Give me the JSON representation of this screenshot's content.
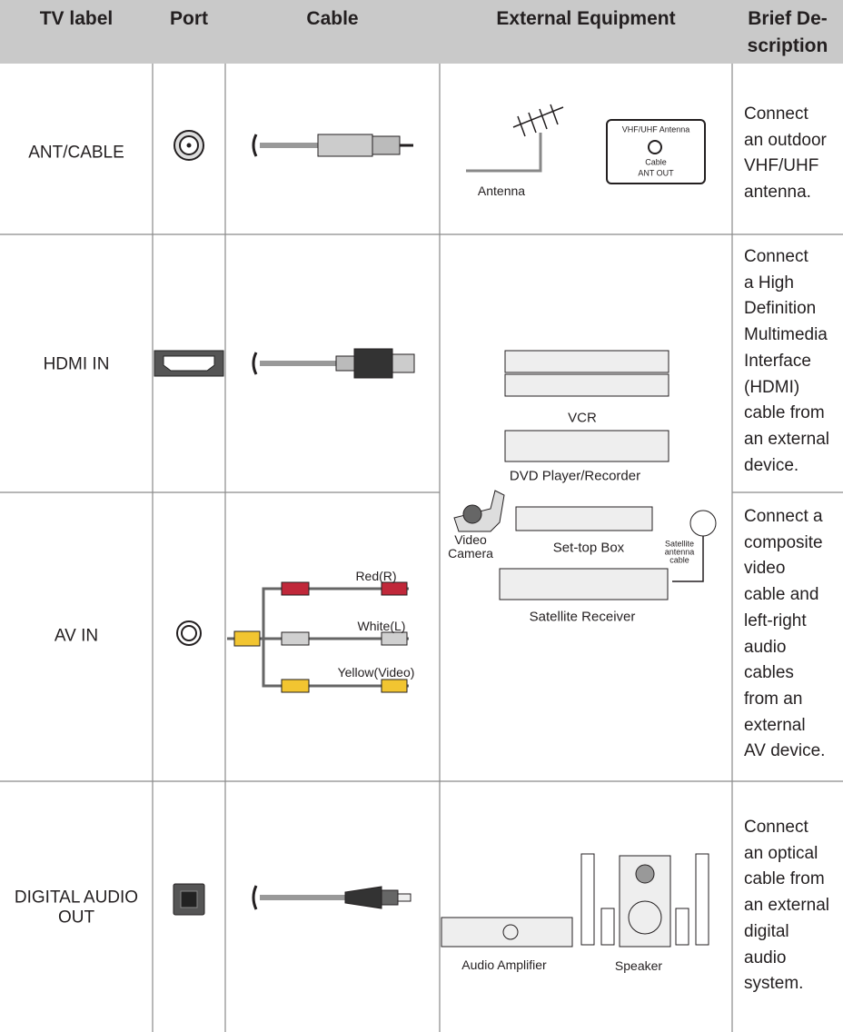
{
  "header": {
    "columns": [
      "TV label",
      "Port",
      "Cable",
      "External Equipment",
      [
        "Brief De-",
        "scription"
      ]
    ]
  },
  "rows": [
    {
      "tv_label": [
        "ANT/CABLE"
      ],
      "description": [
        "Connect",
        "an outdoor",
        "VHF/UHF",
        "antenna."
      ]
    },
    {
      "tv_label": [
        "HDMI IN"
      ],
      "description": [
        "Connect",
        "a High",
        "Definition",
        "Multimedia",
        "Interface",
        "(HDMI)",
        "cable from",
        "an external",
        "device."
      ]
    },
    {
      "tv_label": [
        "AV IN"
      ],
      "description": [
        "Connect a",
        "composite",
        "video",
        "cable and",
        "left-right",
        "audio",
        "cables",
        "from an",
        "external",
        "AV device."
      ]
    },
    {
      "tv_label": [
        "DIGITAL AUDIO",
        "OUT"
      ],
      "description": [
        "Connect",
        "an optical",
        "cable from",
        "an external",
        "digital",
        "audio",
        "system."
      ]
    }
  ],
  "illustrations": {
    "antenna": "Antenna",
    "wall_plate": [
      "VHF/UHF Antenna",
      "Cable",
      "ANT OUT"
    ],
    "vcr": "VCR",
    "dvd": "DVD Player/Recorder",
    "camera": [
      "Video",
      "Camera"
    ],
    "set_top_box": "Set-top Box",
    "satellite_cable": [
      "Satellite",
      "antenna",
      "cable"
    ],
    "satellite_receiver": "Satellite Receiver",
    "av_cables": [
      "Red(R)",
      "White(L)",
      "Yellow(Video)"
    ],
    "amplifier": "Audio Amplifier",
    "speaker": "Speaker"
  }
}
